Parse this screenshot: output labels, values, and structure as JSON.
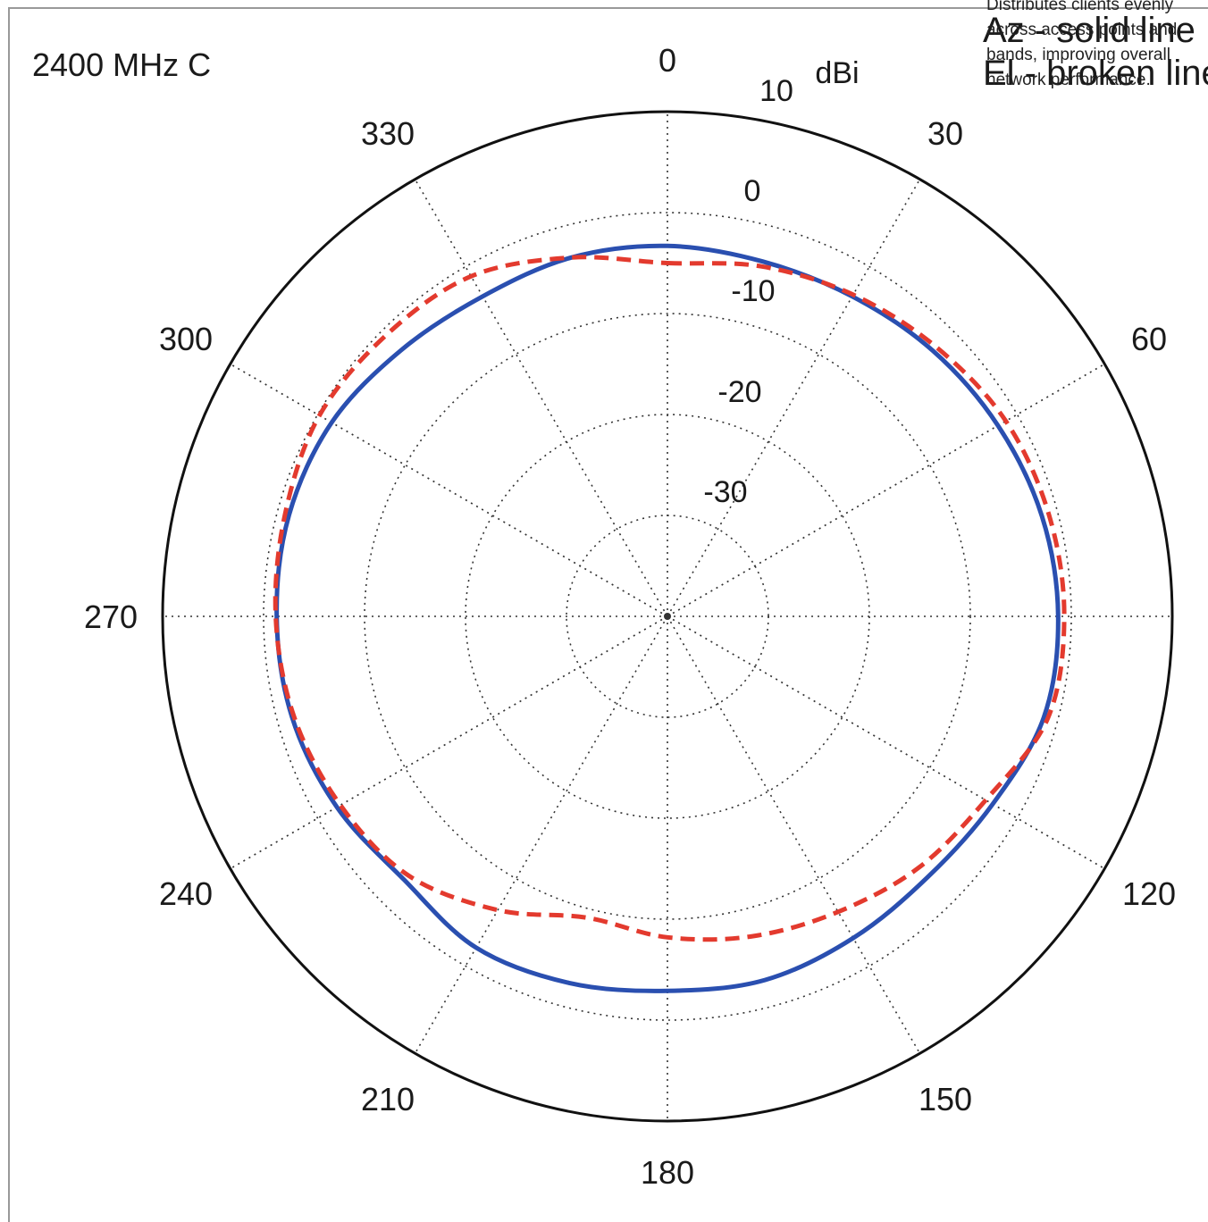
{
  "chart_data": {
    "type": "polar-line",
    "title": "2400 MHz C",
    "unit": "dBi",
    "radial_ticks": [
      "10",
      "0",
      "-10",
      "-20",
      "-30"
    ],
    "radial_range": [
      -40,
      10
    ],
    "angle_ticks": [
      "0",
      "30",
      "60",
      "120",
      "150",
      "180",
      "210",
      "240",
      "270",
      "300",
      "330"
    ],
    "legend": [
      "Az - solid line",
      "El - broken line"
    ],
    "grid": true,
    "series": [
      {
        "name": "Az - solid line",
        "style": "solid",
        "color": "#2a4fb0",
        "angles": [
          0,
          15,
          30,
          45,
          60,
          75,
          90,
          105,
          120,
          135,
          150,
          165,
          180,
          195,
          210,
          225,
          240,
          255,
          270,
          285,
          300,
          315,
          330,
          345,
          360
        ],
        "values": [
          -3.3,
          -3.6,
          -3.4,
          -2.8,
          -2.2,
          -1.6,
          -1.3,
          -1.4,
          -2.8,
          -3.5,
          -3.2,
          -2.7,
          -2.9,
          -2.4,
          -2.1,
          -3.1,
          -2.2,
          -1.5,
          -1.3,
          -1.2,
          -1.6,
          -2.7,
          -3.4,
          -3.2,
          -3.3
        ]
      },
      {
        "name": "El - broken line",
        "style": "dashed",
        "color": "#e33a2e",
        "angles": [
          0,
          15,
          30,
          45,
          60,
          75,
          90,
          105,
          120,
          135,
          150,
          165,
          180,
          195,
          210,
          225,
          240,
          255,
          270,
          285,
          300,
          315,
          330,
          345,
          360
        ],
        "values": [
          -5.0,
          -4.1,
          -3.2,
          -2.3,
          -1.3,
          -0.9,
          -0.7,
          -1.0,
          -3.6,
          -4.8,
          -6.2,
          -7.2,
          -8.2,
          -9.1,
          -6.4,
          -3.7,
          -2.6,
          -1.7,
          -1.2,
          -0.8,
          -0.2,
          -0.6,
          -1.1,
          -3.2,
          -5.0
        ]
      }
    ]
  },
  "tooltip_text": "Distributes clients evenly across access points and bands, improving overall network performance."
}
